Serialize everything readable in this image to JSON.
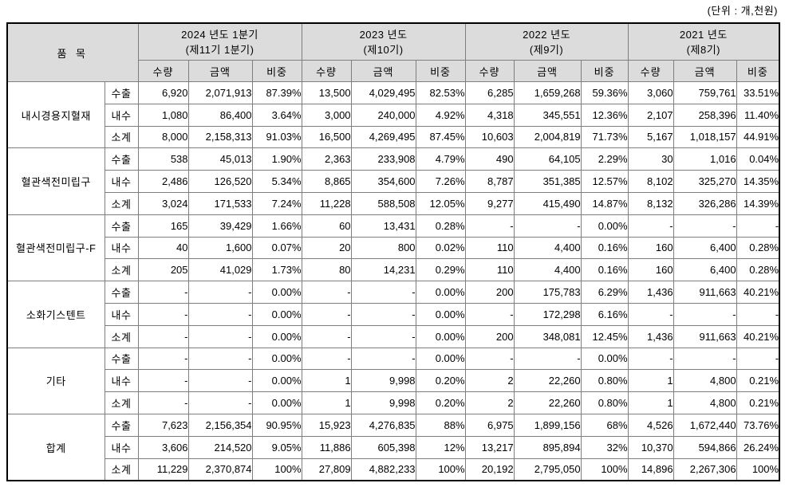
{
  "unit_note": "(단위 : 개,천원)",
  "colors": {
    "header_bg": "#dcdcdc",
    "inner_border": "#7e7e7e",
    "outer_border": "#000000",
    "text": "#000000",
    "page_bg": "#ffffff"
  },
  "table": {
    "item_header": "품 목",
    "periods": [
      {
        "title": "2024 년도 1분기",
        "subtitle": "(제11기 1분기)"
      },
      {
        "title": "2023 년도",
        "subtitle": "(제10기)"
      },
      {
        "title": "2022 년도",
        "subtitle": "(제9기)"
      },
      {
        "title": "2021 년도",
        "subtitle": "(제8기)"
      }
    ],
    "measure_headers": [
      "수량",
      "금액",
      "비중"
    ],
    "groups": [
      {
        "name": "내시경용지혈재",
        "rows": [
          {
            "label": "수출",
            "cells": [
              "6,920",
              "2,071,913",
              "87.39%",
              "13,500",
              "4,029,495",
              "82.53%",
              "6,285",
              "1,659,268",
              "59.36%",
              "3,060",
              "759,761",
              "33.51%"
            ]
          },
          {
            "label": "내수",
            "cells": [
              "1,080",
              "86,400",
              "3.64%",
              "3,000",
              "240,000",
              "4.92%",
              "4,318",
              "345,551",
              "12.36%",
              "2,107",
              "258,396",
              "11.40%"
            ]
          },
          {
            "label": "소계",
            "cells": [
              "8,000",
              "2,158,313",
              "91.03%",
              "16,500",
              "4,269,495",
              "87.45%",
              "10,603",
              "2,004,819",
              "71.73%",
              "5,167",
              "1,018,157",
              "44.91%"
            ]
          }
        ]
      },
      {
        "name": "혈관색전미립구",
        "rows": [
          {
            "label": "수출",
            "cells": [
              "538",
              "45,013",
              "1.90%",
              "2,363",
              "233,908",
              "4.79%",
              "490",
              "64,105",
              "2.29%",
              "30",
              "1,016",
              "0.04%"
            ]
          },
          {
            "label": "내수",
            "cells": [
              "2,486",
              "126,520",
              "5.34%",
              "8,865",
              "354,600",
              "7.26%",
              "8,787",
              "351,385",
              "12.57%",
              "8,102",
              "325,270",
              "14.35%"
            ]
          },
          {
            "label": "소계",
            "cells": [
              "3,024",
              "171,533",
              "7.24%",
              "11,228",
              "588,508",
              "12.05%",
              "9,277",
              "415,490",
              "14.87%",
              "8,132",
              "326,286",
              "14.39%"
            ]
          }
        ]
      },
      {
        "name": "혈관색전미립구-F",
        "rows": [
          {
            "label": "수출",
            "cells": [
              "165",
              "39,429",
              "1.66%",
              "60",
              "13,431",
              "0.28%",
              "-",
              "-",
              "0.00%",
              "-",
              "-",
              "-"
            ]
          },
          {
            "label": "내수",
            "cells": [
              "40",
              "1,600",
              "0.07%",
              "20",
              "800",
              "0.02%",
              "110",
              "4,400",
              "0.16%",
              "160",
              "6,400",
              "0.28%"
            ]
          },
          {
            "label": "소계",
            "cells": [
              "205",
              "41,029",
              "1.73%",
              "80",
              "14,231",
              "0.29%",
              "110",
              "4,400",
              "0.16%",
              "160",
              "6,400",
              "0.28%"
            ]
          }
        ]
      },
      {
        "name": "소화기스텐트",
        "rows": [
          {
            "label": "수출",
            "cells": [
              "-",
              "-",
              "0.00%",
              "-",
              "-",
              "0.00%",
              "200",
              "175,783",
              "6.29%",
              "1,436",
              "911,663",
              "40.21%"
            ]
          },
          {
            "label": "내수",
            "cells": [
              "-",
              "-",
              "0.00%",
              "-",
              "-",
              "0.00%",
              "-",
              "172,298",
              "6.16%",
              "-",
              "-",
              "-"
            ]
          },
          {
            "label": "소계",
            "cells": [
              "-",
              "-",
              "0.00%",
              "-",
              "-",
              "0.00%",
              "200",
              "348,081",
              "12.45%",
              "1,436",
              "911,663",
              "40.21%"
            ]
          }
        ]
      },
      {
        "name": "기타",
        "rows": [
          {
            "label": "수출",
            "cells": [
              "-",
              "-",
              "0.00%",
              "-",
              "-",
              "0.00%",
              "-",
              "-",
              "0.00%",
              "-",
              "-",
              "-"
            ]
          },
          {
            "label": "내수",
            "cells": [
              "-",
              "-",
              "0.00%",
              "1",
              "9,998",
              "0.20%",
              "2",
              "22,260",
              "0.80%",
              "1",
              "4,800",
              "0.21%"
            ]
          },
          {
            "label": "소계",
            "cells": [
              "-",
              "-",
              "0.00%",
              "1",
              "9,998",
              "0.20%",
              "2",
              "22,260",
              "0.80%",
              "1",
              "4,800",
              "0.21%"
            ]
          }
        ]
      },
      {
        "name": "합계",
        "rows": [
          {
            "label": "수출",
            "cells": [
              "7,623",
              "2,156,354",
              "90.95%",
              "15,923",
              "4,276,835",
              "88%",
              "6,975",
              "1,899,156",
              "68%",
              "4,526",
              "1,672,440",
              "73.76%"
            ]
          },
          {
            "label": "내수",
            "cells": [
              "3,606",
              "214,520",
              "9.05%",
              "11,886",
              "605,398",
              "12%",
              "13,217",
              "895,894",
              "32%",
              "10,370",
              "594,866",
              "26.24%"
            ]
          },
          {
            "label": "소계",
            "cells": [
              "11,229",
              "2,370,874",
              "100%",
              "27,809",
              "4,882,233",
              "100%",
              "20,192",
              "2,795,050",
              "100%",
              "14,896",
              "2,267,306",
              "100%"
            ]
          }
        ]
      }
    ]
  }
}
